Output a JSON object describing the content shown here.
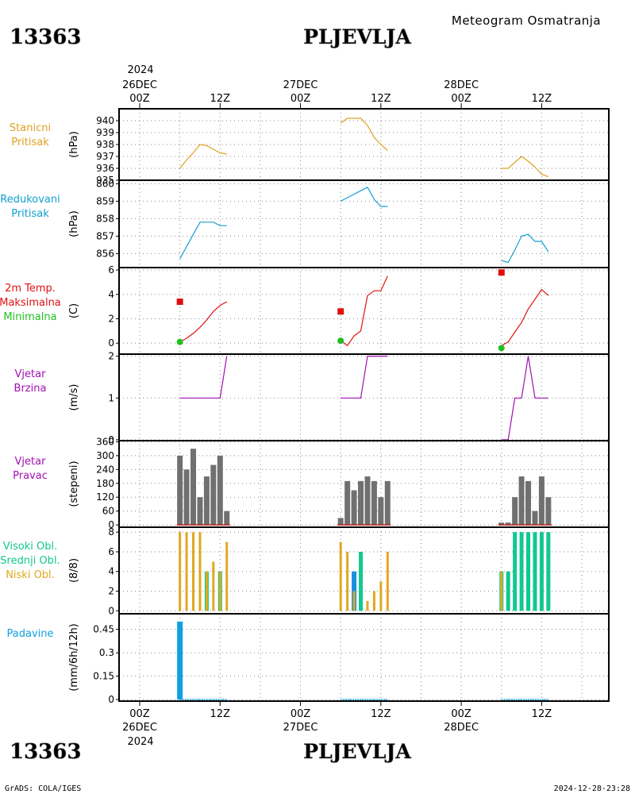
{
  "header": {
    "station_id": "13363",
    "station_name": "PLJEVLJA",
    "title": "Meteogram Osmatranja"
  },
  "footer": {
    "credit": "GrADS: COLA/IGES",
    "timestamp": "2024-12-28-23:28"
  },
  "time_axis": {
    "top_year": "2024",
    "bottom_year": "2024",
    "labels": [
      {
        "t": 0,
        "top": [
          "26DEC",
          "00Z"
        ],
        "bottom": [
          "00Z",
          "26DEC"
        ]
      },
      {
        "t": 12,
        "top": [
          "12Z"
        ],
        "bottom": [
          "12Z"
        ]
      },
      {
        "t": 24,
        "top": [
          "27DEC",
          "00Z"
        ],
        "bottom": [
          "00Z",
          "27DEC"
        ]
      },
      {
        "t": 36,
        "top": [
          "12Z"
        ],
        "bottom": [
          "12Z"
        ]
      },
      {
        "t": 48,
        "top": [
          "28DEC",
          "00Z"
        ],
        "bottom": [
          "00Z",
          "28DEC"
        ]
      },
      {
        "t": 60,
        "top": [
          "12Z"
        ],
        "bottom": [
          "12Z"
        ]
      }
    ],
    "grid_hours": [
      0,
      6,
      12,
      18,
      24,
      30,
      36,
      42,
      48,
      54,
      60,
      66
    ]
  },
  "colors": {
    "station_pressure": "#e0a020",
    "reduced_pressure": "#10a0d0",
    "temp_max": "#e01010",
    "temp_min": "#20c020",
    "wind": "#a010b0",
    "wind_dir_bar": "#707070",
    "wind_dir_base": "#c02020",
    "cloud_high": "#10c890",
    "cloud_mid": "#1890e0",
    "cloud_low": "#e0a820",
    "precip": "#10a0e0"
  },
  "chart_data": [
    {
      "type": "line",
      "panel_label": [
        "Stanicni",
        "Pritisak"
      ],
      "ylabel": "(hPa)",
      "ylim": [
        935,
        941
      ],
      "yticks": [
        935,
        936,
        937,
        938,
        939,
        940
      ],
      "series": [
        {
          "x": [
            6,
            7,
            8,
            9,
            10,
            11,
            12,
            13
          ],
          "y": [
            936.0,
            936.7,
            937.3,
            938.0,
            937.9,
            937.6,
            937.3,
            937.2
          ]
        },
        {
          "x": [
            30,
            31,
            32,
            33,
            34,
            35,
            36,
            37
          ],
          "y": [
            939.8,
            940.2,
            940.2,
            940.2,
            939.6,
            938.6,
            938.0,
            937.5
          ]
        },
        {
          "x": [
            54,
            55,
            56,
            57,
            58,
            59,
            60,
            61
          ],
          "y": [
            936.0,
            936.0,
            936.5,
            937.0,
            936.6,
            936.1,
            935.5,
            935.3
          ]
        }
      ]
    },
    {
      "type": "line",
      "panel_label": [
        "Redukovani",
        "Pritisak"
      ],
      "ylabel": "(hPa)",
      "ylim": [
        855.2,
        860.2
      ],
      "yticks": [
        856,
        857,
        858,
        859,
        860
      ],
      "series": [
        {
          "x": [
            6,
            7,
            8,
            9,
            10,
            11,
            12,
            13
          ],
          "y": [
            855.7,
            856.4,
            857.1,
            857.8,
            857.8,
            857.8,
            857.6,
            857.6
          ]
        },
        {
          "x": [
            30,
            31,
            32,
            33,
            34,
            35,
            36,
            37
          ],
          "y": [
            859.0,
            859.2,
            859.4,
            859.6,
            859.8,
            859.1,
            858.7,
            858.7
          ]
        },
        {
          "x": [
            54,
            55,
            56,
            57,
            58,
            59,
            60,
            61
          ],
          "y": [
            855.6,
            855.5,
            856.2,
            857.0,
            857.1,
            856.7,
            856.7,
            856.1
          ]
        }
      ]
    },
    {
      "type": "line",
      "panel_label": [
        "2m Temp.",
        "Maksimalna",
        "Minimalna"
      ],
      "ylabel": "(C)",
      "ylim": [
        -0.9,
        6.2
      ],
      "yticks": [
        0,
        2,
        4,
        6
      ],
      "series": [
        {
          "x": [
            6,
            7,
            8,
            9,
            10,
            11,
            12,
            13
          ],
          "y": [
            0.1,
            0.4,
            0.8,
            1.3,
            1.9,
            2.6,
            3.1,
            3.4
          ]
        },
        {
          "x": [
            30,
            31,
            32,
            33,
            34,
            35,
            36,
            37
          ],
          "y": [
            0.2,
            -0.2,
            0.6,
            1.0,
            3.9,
            4.3,
            4.3,
            5.5
          ]
        },
        {
          "x": [
            54,
            55,
            56,
            57,
            58,
            59,
            60,
            61
          ],
          "y": [
            -0.2,
            0.1,
            0.9,
            1.7,
            2.8,
            3.6,
            4.4,
            3.9
          ]
        }
      ],
      "max_points": [
        {
          "x": 6,
          "y": 3.4
        },
        {
          "x": 30,
          "y": 2.6
        },
        {
          "x": 54,
          "y": 5.8
        }
      ],
      "min_points": [
        {
          "x": 6,
          "y": 0.1
        },
        {
          "x": 30,
          "y": 0.2
        },
        {
          "x": 54,
          "y": -0.4
        }
      ]
    },
    {
      "type": "line",
      "panel_label": [
        "Vjetar",
        "Brzina"
      ],
      "ylabel": "(m/s)",
      "ylim": [
        -0.02,
        2.05
      ],
      "yticks": [
        0,
        1,
        2
      ],
      "series": [
        {
          "x": [
            6,
            7,
            8,
            9,
            10,
            11,
            12,
            13
          ],
          "y": [
            1,
            1,
            1,
            1,
            1,
            1,
            1,
            2
          ]
        },
        {
          "x": [
            30,
            31,
            32,
            33,
            34,
            35,
            36,
            37
          ],
          "y": [
            1,
            1,
            1,
            1,
            2,
            2,
            2,
            2
          ]
        },
        {
          "x": [
            54,
            55,
            56,
            57,
            58,
            59,
            60,
            61
          ],
          "y": [
            0,
            0,
            1,
            1,
            2,
            1,
            1,
            1
          ]
        }
      ]
    },
    {
      "type": "bar",
      "panel_label": [
        "Vjetar",
        "Pravac"
      ],
      "ylabel": "(stepeni)",
      "ylim": [
        -10,
        365
      ],
      "yticks": [
        0,
        60,
        120,
        180,
        240,
        300,
        360
      ],
      "x": [
        6,
        7,
        8,
        9,
        10,
        11,
        12,
        13,
        30,
        31,
        32,
        33,
        34,
        35,
        36,
        37,
        54,
        55,
        56,
        57,
        58,
        59,
        60,
        61
      ],
      "values": [
        300,
        240,
        330,
        120,
        210,
        260,
        300,
        60,
        30,
        190,
        150,
        190,
        210,
        190,
        120,
        190,
        10,
        10,
        120,
        210,
        190,
        60,
        210,
        120
      ]
    },
    {
      "type": "bar",
      "panel_label": [
        "Visoki Obl.",
        "Srednji Obl.",
        "Niski Obl."
      ],
      "ylabel": "(8/8)",
      "ylim": [
        -0.3,
        8.5
      ],
      "yticks": [
        0,
        2,
        4,
        6,
        8
      ],
      "x": [
        6,
        7,
        8,
        9,
        10,
        11,
        12,
        13,
        30,
        31,
        32,
        33,
        34,
        35,
        36,
        37,
        54,
        55,
        56,
        57,
        58,
        59,
        60,
        61
      ],
      "series": [
        {
          "name": "Visoki Obl.",
          "values": [
            0,
            0,
            0,
            0,
            4,
            0,
            4,
            0,
            0,
            0,
            0,
            6,
            0,
            0,
            0,
            0,
            4,
            4,
            8,
            8,
            8,
            8,
            8,
            8
          ]
        },
        {
          "name": "Srednji Obl.",
          "values": [
            0,
            0,
            0,
            0,
            0,
            0,
            0,
            0,
            0,
            0,
            4,
            0,
            0,
            0,
            0,
            0,
            0,
            0,
            0,
            0,
            0,
            0,
            0,
            0
          ]
        },
        {
          "name": "Niski Obl.",
          "values": [
            8,
            8,
            8,
            8,
            4,
            5,
            4,
            7,
            7,
            6,
            2,
            0,
            1,
            2,
            3,
            6,
            4,
            0,
            0,
            0,
            0,
            0,
            0,
            0
          ]
        }
      ]
    },
    {
      "type": "bar",
      "panel_label": [
        "Padavine"
      ],
      "ylabel": "(mm/6h/12h)",
      "ylim": [
        -0.01,
        0.55
      ],
      "yticks": [
        "0",
        "0.15",
        "0.3",
        "0.45"
      ],
      "x": [
        6,
        7,
        8,
        9,
        10,
        11,
        12,
        13,
        30,
        31,
        32,
        33,
        34,
        35,
        36,
        37,
        54,
        55,
        56,
        57,
        58,
        59,
        60,
        61
      ],
      "values": [
        0.5,
        0,
        0,
        0,
        0,
        0,
        0,
        0,
        0,
        0,
        0,
        0,
        0,
        0,
        0,
        0,
        0,
        0,
        0,
        0,
        0,
        0,
        0,
        0
      ]
    }
  ]
}
